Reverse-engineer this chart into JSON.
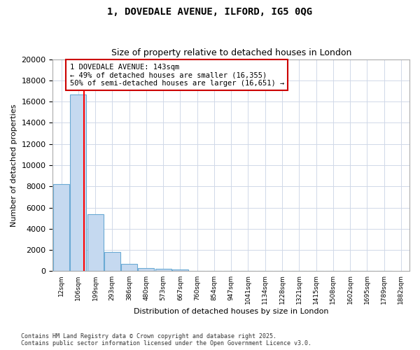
{
  "title1": "1, DOVEDALE AVENUE, ILFORD, IG5 0QG",
  "title2": "Size of property relative to detached houses in London",
  "xlabel": "Distribution of detached houses by size in London",
  "ylabel": "Number of detached properties",
  "bin_labels": [
    "12sqm",
    "106sqm",
    "199sqm",
    "293sqm",
    "386sqm",
    "480sqm",
    "573sqm",
    "667sqm",
    "760sqm",
    "854sqm",
    "947sqm",
    "1041sqm",
    "1134sqm",
    "1228sqm",
    "1321sqm",
    "1415sqm",
    "1508sqm",
    "1602sqm",
    "1695sqm",
    "1789sqm",
    "1882sqm"
  ],
  "counts": [
    8200,
    16700,
    5350,
    1800,
    700,
    300,
    200,
    130,
    0,
    0,
    0,
    0,
    0,
    0,
    0,
    0,
    0,
    0,
    0,
    0
  ],
  "bar_color": "#c5d9f0",
  "bar_edge_color": "#6aaad4",
  "red_line_x": 1.35,
  "annotation_text": "1 DOVEDALE AVENUE: 143sqm\n← 49% of detached houses are smaller (16,355)\n50% of semi-detached houses are larger (16,651) →",
  "annotation_box_color": "#ffffff",
  "annotation_border_color": "#cc0000",
  "ylim": [
    0,
    20000
  ],
  "yticks": [
    0,
    2000,
    4000,
    6000,
    8000,
    10000,
    12000,
    14000,
    16000,
    18000,
    20000
  ],
  "footer1": "Contains HM Land Registry data © Crown copyright and database right 2025.",
  "footer2": "Contains public sector information licensed under the Open Government Licence v3.0.",
  "bg_color": "#ffffff",
  "grid_color": "#d0d8e8",
  "title1_fontsize": 10,
  "title2_fontsize": 9,
  "ylabel_fontsize": 8,
  "xlabel_fontsize": 8
}
